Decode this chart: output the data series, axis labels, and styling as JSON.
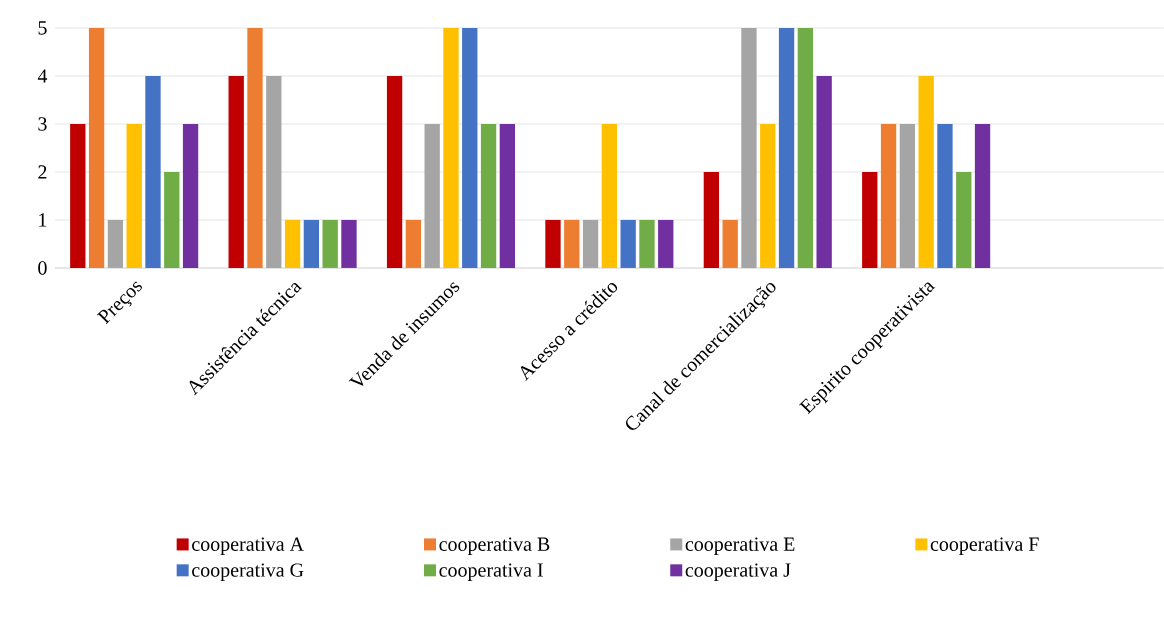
{
  "chart_data": {
    "type": "bar",
    "categories": [
      "Preços",
      "Assistência técnica",
      "Venda de insumos",
      "Acesso a crédito",
      "Canal de comercialização",
      "Espirito cooperativista",
      null
    ],
    "series": [
      {
        "name": "cooperativa A",
        "color": "#c00000",
        "values": [
          3,
          4,
          4,
          1,
          2,
          2,
          null
        ]
      },
      {
        "name": "cooperativa B",
        "color": "#ed7d31",
        "values": [
          5,
          5,
          1,
          1,
          1,
          3,
          null
        ]
      },
      {
        "name": "cooperativa E",
        "color": "#a5a5a5",
        "values": [
          1,
          4,
          3,
          1,
          5,
          3,
          null
        ]
      },
      {
        "name": "cooperativa F",
        "color": "#ffc000",
        "values": [
          3,
          1,
          5,
          3,
          3,
          4,
          null
        ]
      },
      {
        "name": "cooperativa G",
        "color": "#4472c4",
        "values": [
          4,
          1,
          5,
          1,
          5,
          3,
          null
        ]
      },
      {
        "name": "cooperativa I",
        "color": "#70ad47",
        "values": [
          2,
          1,
          3,
          1,
          5,
          2,
          null
        ]
      },
      {
        "name": "cooperativa J",
        "color": "#7030a0",
        "values": [
          3,
          1,
          3,
          1,
          4,
          3,
          null
        ]
      }
    ],
    "ylim": [
      0,
      5
    ],
    "yticks": [
      0,
      1,
      2,
      3,
      4,
      5
    ],
    "grid": "y",
    "legend": "bottom"
  }
}
